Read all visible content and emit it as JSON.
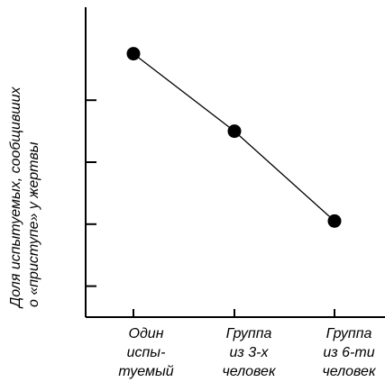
{
  "chart_data": {
    "type": "line",
    "title": "",
    "xlabel": "",
    "ylabel_lines": [
      "Доля испытуемых, сообщивших",
      "о «приступе» у жертвы"
    ],
    "categories": [
      [
        "Один",
        "испы-",
        "туемый"
      ],
      [
        "Группа",
        "из 3-х",
        "человек"
      ],
      [
        "Группа",
        "из 6-ти",
        "человек"
      ]
    ],
    "series": [
      {
        "values": [
          0.85,
          0.6,
          0.31
        ]
      }
    ],
    "ylim": [
      0,
      1
    ],
    "yticks": [
      0.1,
      0.3,
      0.5,
      0.7
    ],
    "grid": false,
    "legend": "none",
    "colors": {
      "line": "#000000",
      "marker": "#000000",
      "axis": "#000000"
    }
  }
}
